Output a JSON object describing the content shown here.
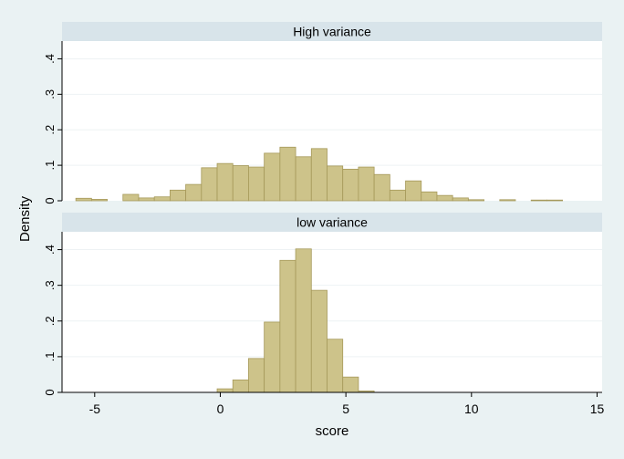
{
  "chart_data": {
    "type": "bar",
    "layout": "two stacked panels sharing x axis",
    "ylabel": "Density",
    "xlabel": "score",
    "x_ticks": [
      -5,
      0,
      5,
      10,
      15
    ],
    "xlim": [
      -6.3,
      15.2
    ],
    "bin_width": 0.625,
    "colors": {
      "bar_fill": "#cdc38a",
      "bar_edge": "#a6995a",
      "strip": "#d8e4ea",
      "plot_bg": "#ffffff",
      "outer_bg": "#eaf2f3",
      "grid": "#eef2f4"
    },
    "grid": true,
    "panels": [
      {
        "title": "High variance",
        "ylim": [
          0,
          0.45
        ],
        "y_ticks": [
          0,
          0.1,
          0.2,
          0.3,
          0.4
        ],
        "y_tick_labels": [
          "0",
          ".1",
          ".2",
          ".3",
          ".4"
        ],
        "bars": [
          {
            "x0": -5.75,
            "value": 0.007
          },
          {
            "x0": -5.125,
            "value": 0.004
          },
          {
            "x0": -3.875,
            "value": 0.018
          },
          {
            "x0": -3.25,
            "value": 0.008
          },
          {
            "x0": -2.625,
            "value": 0.011
          },
          {
            "x0": -2.0,
            "value": 0.03
          },
          {
            "x0": -1.375,
            "value": 0.046
          },
          {
            "x0": -0.75,
            "value": 0.093
          },
          {
            "x0": -0.125,
            "value": 0.105
          },
          {
            "x0": 0.5,
            "value": 0.099
          },
          {
            "x0": 1.125,
            "value": 0.095
          },
          {
            "x0": 1.75,
            "value": 0.134
          },
          {
            "x0": 2.375,
            "value": 0.151
          },
          {
            "x0": 3.0,
            "value": 0.124
          },
          {
            "x0": 3.625,
            "value": 0.147
          },
          {
            "x0": 4.25,
            "value": 0.098
          },
          {
            "x0": 4.875,
            "value": 0.089
          },
          {
            "x0": 5.5,
            "value": 0.095
          },
          {
            "x0": 6.125,
            "value": 0.074
          },
          {
            "x0": 6.75,
            "value": 0.03
          },
          {
            "x0": 7.375,
            "value": 0.056
          },
          {
            "x0": 8.0,
            "value": 0.025
          },
          {
            "x0": 8.625,
            "value": 0.015
          },
          {
            "x0": 9.25,
            "value": 0.008
          },
          {
            "x0": 9.875,
            "value": 0.003
          },
          {
            "x0": 11.125,
            "value": 0.003
          },
          {
            "x0": 12.375,
            "value": 0.002
          },
          {
            "x0": 13.0,
            "value": 0.002
          }
        ]
      },
      {
        "title": "low variance",
        "ylim": [
          0,
          0.45
        ],
        "y_ticks": [
          0,
          0.1,
          0.2,
          0.3,
          0.4
        ],
        "y_tick_labels": [
          "0",
          ".1",
          ".2",
          ".3",
          ".4"
        ],
        "bars": [
          {
            "x0": -0.125,
            "value": 0.01
          },
          {
            "x0": 0.5,
            "value": 0.035
          },
          {
            "x0": 1.125,
            "value": 0.095
          },
          {
            "x0": 1.75,
            "value": 0.197
          },
          {
            "x0": 2.375,
            "value": 0.37
          },
          {
            "x0": 3.0,
            "value": 0.402
          },
          {
            "x0": 3.625,
            "value": 0.286
          },
          {
            "x0": 4.25,
            "value": 0.149
          },
          {
            "x0": 4.875,
            "value": 0.043
          },
          {
            "x0": 5.5,
            "value": 0.004
          }
        ]
      }
    ]
  }
}
